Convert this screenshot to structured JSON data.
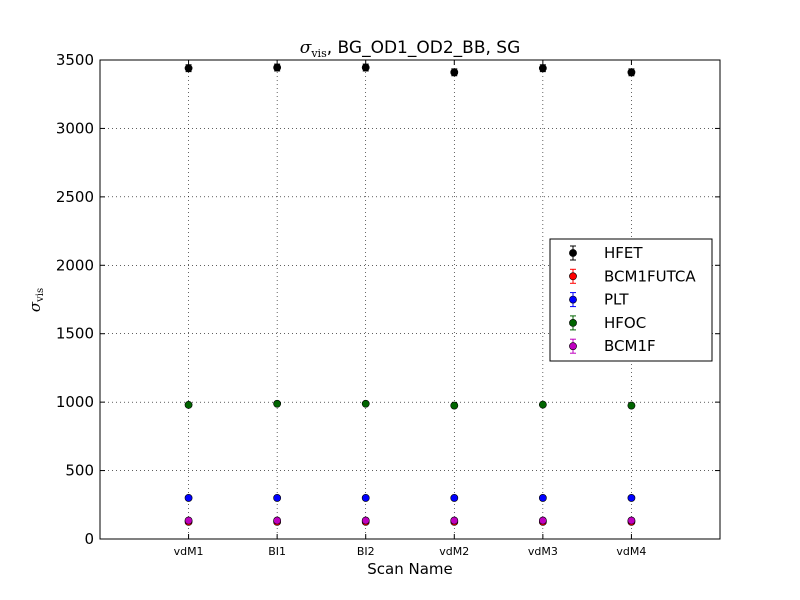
{
  "chart_data": {
    "type": "scatter",
    "title": {
      "symbol": "σ",
      "subscript": "vis",
      "suffix": ", BG_OD1_OD2_BB, SG"
    },
    "xlabel": "Scan Name",
    "ylabel": {
      "symbol": "σ",
      "subscript": "vis"
    },
    "categories": [
      "vdM1",
      "BI1",
      "BI2",
      "vdM2",
      "vdM3",
      "vdM4"
    ],
    "ylim": [
      0,
      3500
    ],
    "yticks": [
      0,
      500,
      1000,
      1500,
      2000,
      2500,
      3000,
      3500
    ],
    "grid": true,
    "legend_position": "center-right",
    "series": [
      {
        "name": "HFET",
        "color": "#000000",
        "values": [
          3440,
          3445,
          3445,
          3410,
          3440,
          3410
        ],
        "errors": [
          25,
          25,
          25,
          25,
          25,
          25
        ]
      },
      {
        "name": "BCM1FUTCA",
        "color": "#ff0000",
        "values": [
          125,
          125,
          125,
          125,
          125,
          125
        ],
        "errors": [
          5,
          5,
          5,
          5,
          5,
          5
        ]
      },
      {
        "name": "PLT",
        "color": "#0000ff",
        "values": [
          300,
          300,
          300,
          300,
          300,
          300
        ],
        "errors": [
          3,
          3,
          3,
          3,
          3,
          3
        ]
      },
      {
        "name": "HFOC",
        "color": "#006400",
        "values": [
          980,
          988,
          988,
          975,
          982,
          975
        ],
        "errors": [
          5,
          5,
          5,
          5,
          5,
          5
        ]
      },
      {
        "name": "BCM1F",
        "color": "#bf00bf",
        "values": [
          135,
          135,
          135,
          135,
          135,
          135
        ],
        "errors": [
          5,
          5,
          5,
          5,
          5,
          5
        ]
      }
    ]
  }
}
